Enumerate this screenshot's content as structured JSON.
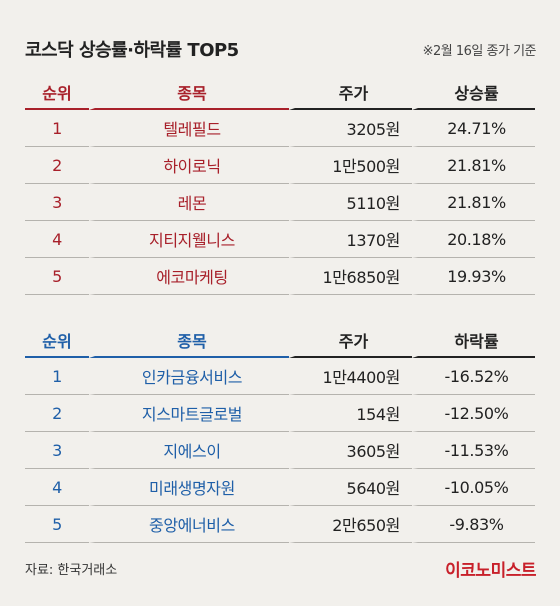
{
  "title": "코스닥 상승률·하락률 TOP5",
  "note": "※2월 16일 종가 기준",
  "up": {
    "headers": {
      "rank": "순위",
      "name": "종목",
      "price": "주가",
      "rate": "상승률"
    },
    "rows": [
      {
        "rank": "1",
        "name": "텔레필드",
        "price": "3205원",
        "rate": "24.71%"
      },
      {
        "rank": "2",
        "name": "하이로닉",
        "price": "1만500원",
        "rate": "21.81%"
      },
      {
        "rank": "3",
        "name": "레몬",
        "price": "5110원",
        "rate": "21.81%"
      },
      {
        "rank": "4",
        "name": "지티지웰니스",
        "price": "1370원",
        "rate": "20.18%"
      },
      {
        "rank": "5",
        "name": "에코마케팅",
        "price": "1만6850원",
        "rate": "19.93%"
      }
    ]
  },
  "down": {
    "headers": {
      "rank": "순위",
      "name": "종목",
      "price": "주가",
      "rate": "하락률"
    },
    "rows": [
      {
        "rank": "1",
        "name": "인카금융서비스",
        "price": "1만4400원",
        "rate": "-16.52%"
      },
      {
        "rank": "2",
        "name": "지스마트글로벌",
        "price": "154원",
        "rate": "-12.50%"
      },
      {
        "rank": "3",
        "name": "지에스이",
        "price": "3605원",
        "rate": "-11.53%"
      },
      {
        "rank": "4",
        "name": "미래생명자원",
        "price": "5640원",
        "rate": "-10.05%"
      },
      {
        "rank": "5",
        "name": "중앙에너비스",
        "price": "2만650원",
        "rate": "-9.83%"
      }
    ]
  },
  "source": "자료: 한국거래소",
  "logo": "이코노미스트",
  "colors": {
    "up_accent": "#a8202a",
    "down_accent": "#1f5fa8",
    "logo": "#c8202a",
    "background": "#f2f0ec"
  }
}
